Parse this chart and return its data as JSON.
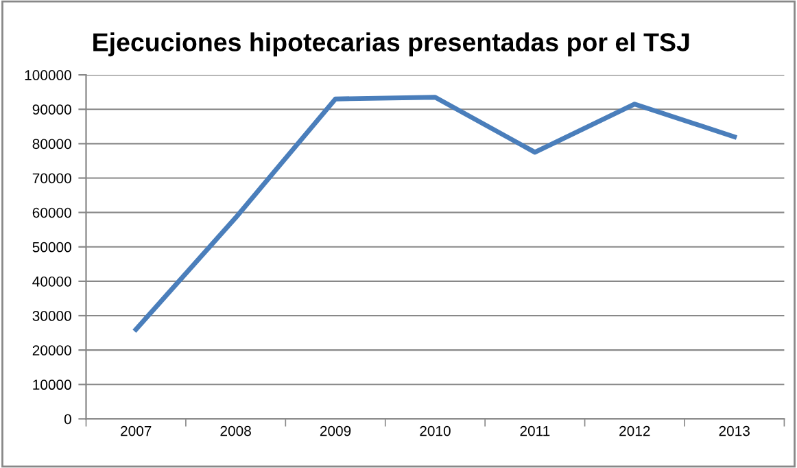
{
  "chart_data": {
    "type": "line",
    "title": "Ejecuciones hipotecarias presentadas por el TSJ",
    "categories": [
      "2007",
      "2008",
      "2009",
      "2010",
      "2011",
      "2012",
      "2013"
    ],
    "series": [
      {
        "color": "#4a7ebb",
        "values": [
          26000,
          58500,
          93000,
          93500,
          77500,
          91500,
          82000
        ]
      }
    ],
    "ylim": [
      0,
      100000
    ],
    "yticks": [
      0,
      10000,
      20000,
      30000,
      40000,
      50000,
      60000,
      70000,
      80000,
      90000,
      100000
    ],
    "grid": "y",
    "legend": false,
    "marker": "none",
    "line_style": "solid"
  }
}
